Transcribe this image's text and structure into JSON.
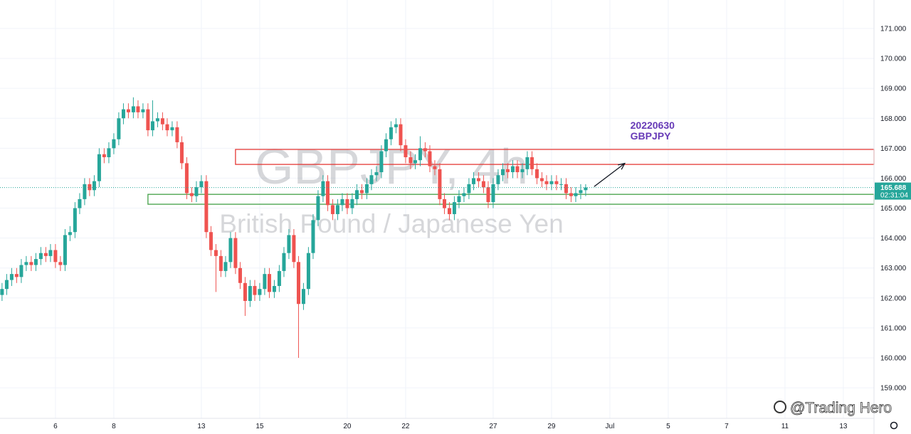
{
  "chart_data": {
    "type": "candlestick",
    "title": "GBPJPY, 4h",
    "subtitle": "British Pound / Japanese Yen",
    "x": [
      -1.83,
      -1.67,
      -1.5,
      -1.33,
      -1.17,
      -1,
      -0.83,
      -0.67,
      -0.5,
      -0.33,
      -0.17,
      0,
      0.17,
      0.33,
      0.5,
      0.67,
      0.83,
      1,
      1.17,
      1.33,
      1.5,
      1.67,
      1.83,
      2,
      2.17,
      2.33,
      2.5,
      2.67,
      2.83,
      3,
      3.17,
      3.33,
      3.5,
      3.67,
      3.83,
      4,
      4.17,
      4.33,
      4.5,
      4.67,
      4.83,
      5,
      5.17,
      5.33,
      5.5,
      5.67,
      5.83,
      6,
      6.17,
      6.33,
      6.5,
      6.67,
      6.83,
      7,
      7.17,
      7.33,
      7.5,
      7.67,
      7.83,
      8,
      8.17,
      8.33,
      8.5,
      8.67,
      8.83,
      9,
      9.17,
      9.33,
      9.5,
      9.67,
      9.83,
      10,
      10.17,
      10.33,
      10.5,
      10.67,
      10.83,
      11,
      11.17,
      11.33,
      11.5,
      11.67,
      11.83,
      12,
      12.17,
      12.33,
      12.5,
      12.67,
      12.83,
      13,
      13.17,
      13.33,
      13.5,
      13.67,
      13.83,
      14,
      14.17,
      14.33,
      14.5,
      14.67,
      14.83,
      15,
      15.17,
      15.33,
      15.5,
      15.67,
      15.83,
      16,
      16.17,
      16.33,
      16.5,
      16.67,
      16.83,
      17,
      17.17,
      17.33,
      17.5,
      17.67,
      17.83,
      18,
      18.17
    ],
    "open": [
      162.1,
      162.3,
      162.6,
      162.8,
      162.7,
      163.1,
      163.2,
      163.1,
      163.3,
      163.5,
      163.4,
      163.6,
      163.2,
      163.1,
      164.1,
      164.2,
      165.0,
      165.3,
      165.8,
      165.6,
      165.9,
      166.8,
      166.7,
      167.0,
      167.3,
      168.0,
      168.3,
      168.2,
      168.4,
      168.2,
      168.3,
      167.6,
      167.9,
      168.0,
      167.8,
      167.6,
      167.7,
      167.2,
      166.5,
      165.5,
      165.4,
      165.7,
      165.9,
      164.2,
      163.6,
      163.4,
      162.9,
      163.2,
      164.0,
      163.0,
      162.5,
      161.9,
      162.4,
      162.1,
      162.3,
      162.8,
      162.2,
      162.4,
      162.9,
      163.5,
      164.1,
      163.2,
      161.8,
      162.3,
      163.5,
      164.6,
      165.4,
      165.9,
      165.1,
      164.8,
      165.1,
      165.3,
      165.0,
      165.3,
      165.6,
      165.5,
      165.8,
      166.1,
      166.2,
      166.9,
      167.3,
      167.7,
      167.8,
      167.1,
      166.7,
      166.5,
      166.6,
      167.0,
      166.9,
      166.4,
      166.3,
      165.3,
      165.0,
      164.8,
      165.2,
      165.4,
      165.5,
      165.8,
      166.0,
      165.9,
      165.7,
      165.2,
      165.8,
      166.1,
      166.3,
      166.2,
      166.4,
      166.2,
      166.3,
      166.7,
      166.3,
      166.0,
      165.9,
      165.8,
      165.9,
      165.8,
      165.8,
      165.5,
      165.4,
      165.5,
      165.6
    ],
    "high": [
      162.5,
      162.8,
      163.0,
      163.0,
      163.3,
      163.4,
      163.4,
      163.5,
      163.7,
      163.7,
      163.8,
      163.8,
      163.4,
      164.3,
      164.4,
      165.2,
      165.5,
      166.0,
      166.0,
      166.1,
      167.0,
      167.0,
      167.2,
      167.5,
      168.2,
      168.5,
      168.5,
      168.7,
      168.6,
      168.5,
      168.5,
      168.6,
      168.2,
      168.2,
      168.0,
      167.9,
      167.9,
      167.4,
      166.7,
      165.7,
      165.9,
      166.1,
      166.1,
      164.4,
      163.8,
      163.6,
      163.4,
      164.2,
      164.2,
      163.2,
      162.7,
      162.6,
      162.6,
      162.5,
      163.0,
      163.0,
      162.6,
      163.1,
      163.7,
      164.3,
      164.3,
      163.4,
      162.5,
      163.7,
      164.8,
      165.6,
      166.1,
      166.1,
      165.3,
      165.3,
      165.5,
      165.5,
      165.5,
      165.8,
      165.8,
      166.0,
      166.3,
      166.4,
      167.1,
      167.5,
      167.9,
      168.0,
      168.0,
      167.3,
      166.9,
      166.8,
      167.4,
      167.2,
      167.1,
      166.6,
      166.5,
      165.5,
      165.2,
      165.4,
      165.6,
      165.7,
      166.0,
      166.2,
      166.2,
      166.1,
      165.9,
      166.0,
      166.3,
      166.5,
      166.5,
      166.6,
      166.6,
      166.5,
      166.9,
      166.9,
      166.5,
      166.2,
      166.1,
      166.1,
      166.1,
      166.0,
      166.0,
      165.7,
      165.7,
      165.8,
      165.8
    ],
    "low": [
      161.9,
      162.1,
      162.4,
      162.5,
      162.5,
      162.9,
      162.9,
      162.9,
      163.1,
      163.2,
      163.2,
      163.0,
      162.9,
      162.9,
      163.9,
      164.0,
      164.8,
      165.1,
      165.4,
      165.4,
      165.7,
      166.5,
      166.5,
      166.8,
      167.1,
      167.8,
      168.0,
      168.0,
      168.0,
      168.0,
      167.4,
      167.4,
      167.7,
      167.6,
      167.4,
      167.4,
      167.0,
      166.3,
      165.3,
      165.2,
      165.2,
      165.5,
      164.0,
      163.4,
      162.2,
      162.7,
      162.7,
      163.0,
      162.8,
      162.3,
      161.4,
      161.7,
      161.9,
      161.9,
      162.1,
      162.0,
      162.0,
      162.2,
      162.7,
      163.3,
      163.0,
      160.0,
      161.6,
      162.1,
      163.3,
      164.4,
      165.2,
      164.9,
      164.6,
      164.6,
      164.9,
      164.8,
      164.8,
      165.1,
      165.3,
      165.3,
      165.6,
      165.9,
      166.0,
      166.7,
      167.1,
      167.5,
      166.9,
      166.5,
      166.3,
      166.3,
      166.4,
      166.7,
      166.2,
      166.1,
      165.1,
      164.8,
      164.6,
      164.6,
      165.0,
      165.2,
      165.3,
      165.6,
      165.7,
      165.5,
      165.0,
      165.0,
      165.6,
      165.9,
      166.0,
      166.0,
      166.0,
      166.0,
      166.1,
      166.1,
      165.8,
      165.7,
      165.6,
      165.6,
      165.6,
      165.6,
      165.3,
      165.2,
      165.2,
      165.3,
      165.4
    ],
    "close": [
      162.3,
      162.6,
      162.8,
      162.7,
      163.1,
      163.2,
      163.1,
      163.3,
      163.5,
      163.4,
      163.6,
      163.2,
      163.1,
      164.1,
      164.2,
      165.0,
      165.3,
      165.8,
      165.6,
      165.9,
      166.8,
      166.7,
      167.0,
      167.3,
      168.0,
      168.3,
      168.2,
      168.4,
      168.2,
      168.3,
      167.6,
      167.9,
      168.0,
      167.8,
      167.6,
      167.7,
      167.2,
      166.5,
      165.5,
      165.4,
      165.7,
      165.9,
      164.2,
      163.6,
      163.4,
      162.9,
      163.2,
      164.0,
      163.0,
      162.5,
      161.9,
      162.4,
      162.1,
      162.3,
      162.8,
      162.2,
      162.4,
      162.9,
      163.5,
      164.1,
      163.2,
      161.8,
      162.3,
      163.5,
      164.6,
      165.4,
      165.9,
      165.1,
      164.8,
      165.1,
      165.3,
      165.0,
      165.3,
      165.6,
      165.5,
      165.8,
      166.1,
      166.2,
      166.9,
      167.3,
      167.7,
      167.8,
      167.1,
      166.7,
      166.5,
      166.6,
      167.0,
      166.9,
      166.4,
      166.3,
      165.3,
      165.0,
      164.8,
      165.2,
      165.4,
      165.5,
      165.8,
      166.0,
      165.9,
      165.7,
      165.2,
      165.8,
      166.1,
      166.3,
      166.2,
      166.4,
      166.2,
      166.3,
      166.7,
      166.3,
      166.0,
      165.9,
      165.8,
      165.9,
      165.8,
      165.8,
      165.5,
      165.4,
      165.5,
      165.6,
      165.69
    ],
    "up_color": "#26a69a",
    "down_color": "#ef5350",
    "xlim": [
      -1.9,
      28.05
    ],
    "xticks": [
      {
        "value": 0,
        "label": "6"
      },
      {
        "value": 2,
        "label": "8"
      },
      {
        "value": 5,
        "label": "13"
      },
      {
        "value": 7,
        "label": "15"
      },
      {
        "value": 10,
        "label": "20"
      },
      {
        "value": 12,
        "label": "22"
      },
      {
        "value": 15,
        "label": "27"
      },
      {
        "value": 17,
        "label": "29"
      },
      {
        "value": 19,
        "label": "Jul"
      },
      {
        "value": 21,
        "label": "5"
      },
      {
        "value": 23,
        "label": "7"
      },
      {
        "value": 25,
        "label": "11"
      },
      {
        "value": 27,
        "label": "13"
      }
    ],
    "ylim": [
      157.98,
      171.95
    ],
    "yticks": [
      {
        "value": 159,
        "label": "159.000"
      },
      {
        "value": 160,
        "label": "160.000"
      },
      {
        "value": 161,
        "label": "161.000"
      },
      {
        "value": 162,
        "label": "162.000"
      },
      {
        "value": 163,
        "label": "163.000"
      },
      {
        "value": 164,
        "label": "164.000"
      },
      {
        "value": 165,
        "label": "165.000"
      },
      {
        "value": 166,
        "label": "166.000"
      },
      {
        "value": 167,
        "label": "167.000"
      },
      {
        "value": 168,
        "label": "168.000"
      },
      {
        "value": 169,
        "label": "169.000"
      },
      {
        "value": 170,
        "label": "170.000"
      },
      {
        "value": 171,
        "label": "171.000"
      }
    ],
    "grid": true,
    "zones": [
      {
        "x0": 6.17,
        "low": 166.46,
        "high": 166.96,
        "color": "#e53935"
      },
      {
        "x0": 3.17,
        "low": 165.13,
        "high": 165.46,
        "color": "#43a047"
      }
    ],
    "arrow": {
      "x": [
        18.46,
        19.49
      ],
      "y": [
        165.72,
        166.48
      ],
      "color": "#131722"
    },
    "annotation": {
      "lines": [
        "20220630",
        "GBPJPY"
      ],
      "x": 19.7,
      "y": 167.77,
      "color": "#673ab7"
    },
    "last_price": 165.688,
    "countdown": "02:31:04",
    "last_price_color": "#26a69a"
  },
  "credit": "@Trading Hero"
}
